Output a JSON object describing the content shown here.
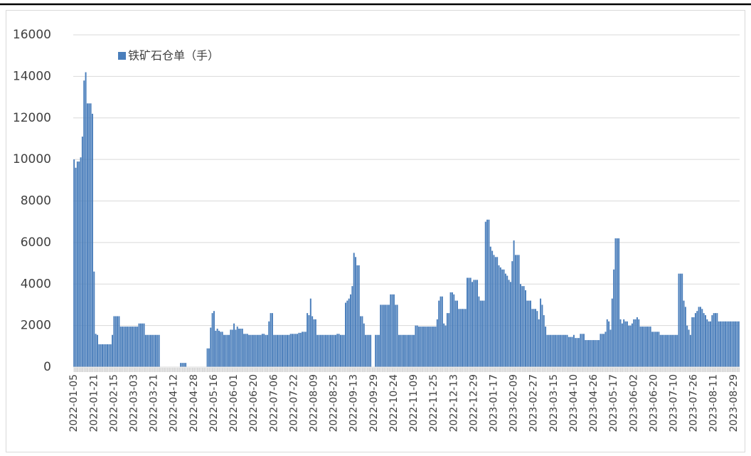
{
  "chart_data": {
    "type": "bar",
    "series": [
      {
        "name": "铁矿石仓单（手）",
        "color": "#4a7ebb",
        "values": [
          10000,
          9600,
          9900,
          9900,
          10100,
          11100,
          13800,
          14200,
          12700,
          12700,
          12700,
          12200,
          4600,
          1600,
          1550,
          1100,
          1100,
          1100,
          1100,
          1100,
          1100,
          1100,
          1100,
          1550,
          2450,
          2450,
          2450,
          2450,
          1950,
          1950,
          1950,
          1950,
          1950,
          1950,
          1950,
          1950,
          1950,
          1950,
          1950,
          2100,
          2100,
          2100,
          2100,
          1550,
          1550,
          1550,
          1550,
          1550,
          1550,
          1550,
          1550,
          1550,
          0,
          0,
          0,
          0,
          0,
          0,
          0,
          0,
          0,
          0,
          0,
          0,
          200,
          200,
          200,
          200,
          0,
          0,
          0,
          0,
          0,
          0,
          0,
          0,
          0,
          0,
          0,
          0,
          900,
          900,
          1900,
          2600,
          2700,
          1750,
          1850,
          1750,
          1700,
          1700,
          1550,
          1550,
          1550,
          1550,
          1800,
          1800,
          2100,
          1800,
          1950,
          1850,
          1850,
          1850,
          1600,
          1600,
          1600,
          1550,
          1550,
          1550,
          1550,
          1550,
          1550,
          1550,
          1550,
          1600,
          1600,
          1550,
          1550,
          2200,
          2600,
          2600,
          1550,
          1550,
          1550,
          1550,
          1550,
          1550,
          1550,
          1550,
          1550,
          1550,
          1600,
          1600,
          1600,
          1600,
          1600,
          1650,
          1650,
          1700,
          1700,
          1700,
          2600,
          2500,
          3300,
          2450,
          2300,
          2300,
          1550,
          1550,
          1550,
          1550,
          1550,
          1550,
          1550,
          1550,
          1550,
          1550,
          1550,
          1550,
          1600,
          1600,
          1550,
          1550,
          1550,
          3100,
          3200,
          3300,
          3500,
          3900,
          5500,
          5300,
          4900,
          4900,
          2450,
          2450,
          2100,
          1550,
          1550,
          1550,
          1550,
          0,
          0,
          1550,
          1550,
          1550,
          3000,
          3000,
          3000,
          3000,
          3000,
          3000,
          3500,
          3500,
          3500,
          3000,
          3000,
          1550,
          1550,
          1550,
          1550,
          1550,
          1550,
          1550,
          1550,
          1550,
          1550,
          2000,
          2000,
          1950,
          1950,
          1950,
          1950,
          1950,
          1950,
          1950,
          1950,
          1950,
          1950,
          1950,
          2300,
          3200,
          3400,
          3400,
          2100,
          2000,
          2600,
          2600,
          3600,
          3600,
          3500,
          3200,
          3200,
          2800,
          2800,
          2800,
          2800,
          2800,
          4300,
          4300,
          4300,
          4100,
          4200,
          4200,
          4200,
          3400,
          3200,
          3200,
          3200,
          7000,
          7100,
          7100,
          5800,
          5600,
          5400,
          5300,
          5300,
          4900,
          4800,
          4700,
          4700,
          4500,
          4400,
          4200,
          4100,
          5100,
          6100,
          5400,
          5400,
          5400,
          4000,
          3900,
          3900,
          3700,
          3200,
          3200,
          3200,
          2800,
          2800,
          2800,
          2700,
          2300,
          3300,
          3000,
          2500,
          1950,
          1550,
          1550,
          1550,
          1550,
          1550,
          1550,
          1550,
          1550,
          1550,
          1550,
          1550,
          1550,
          1550,
          1450,
          1450,
          1450,
          1550,
          1400,
          1400,
          1400,
          1600,
          1600,
          1600,
          1300,
          1300,
          1300,
          1300,
          1300,
          1300,
          1300,
          1300,
          1300,
          1600,
          1600,
          1600,
          1700,
          2300,
          2200,
          1800,
          3300,
          4700,
          6200,
          6200,
          6200,
          2300,
          2100,
          2300,
          2200,
          2200,
          2000,
          2000,
          2100,
          2300,
          2300,
          2400,
          2300,
          1950,
          1950,
          1950,
          1950,
          1950,
          1950,
          1950,
          1700,
          1700,
          1700,
          1700,
          1700,
          1550,
          1550,
          1550,
          1550,
          1550,
          1550,
          1550,
          1550,
          1550,
          1550,
          1550,
          4500,
          4500,
          4500,
          3200,
          2900,
          2000,
          1800,
          1550,
          2400,
          2400,
          2600,
          2700,
          2900,
          2900,
          2800,
          2600,
          2500,
          2300,
          2200,
          2200,
          2500,
          2600,
          2600,
          2600,
          2200,
          2200,
          2200,
          2200,
          2200,
          2200,
          2200,
          2200,
          2200,
          2200,
          2200,
          2200,
          2200
        ]
      }
    ],
    "categories": [
      "2022-01-05",
      null,
      null,
      null,
      null,
      null,
      null,
      null,
      null,
      null,
      null,
      null,
      "2022-01-21",
      null,
      null,
      null,
      null,
      null,
      null,
      null,
      null,
      null,
      null,
      null,
      "2022-02-15",
      null,
      null,
      null,
      null,
      null,
      null,
      null,
      null,
      null,
      null,
      null,
      "2022-03-03",
      null,
      null,
      null,
      null,
      null,
      null,
      null,
      null,
      null,
      null,
      null,
      "2022-03-21",
      null,
      null,
      null,
      null,
      null,
      null,
      null,
      null,
      null,
      null,
      null,
      "2022-04-12",
      null,
      null,
      null,
      null,
      null,
      null,
      null,
      null,
      null,
      null,
      null,
      "2022-04-28",
      null,
      null,
      null,
      null,
      null,
      null,
      null,
      null,
      null,
      null,
      null,
      "2022-05-16",
      null,
      null,
      null,
      null,
      null,
      null,
      null,
      null,
      null,
      null,
      null,
      "2022-06-01",
      null,
      null,
      null,
      null,
      null,
      null,
      null,
      null,
      null,
      null,
      null,
      "2022-06-20",
      null,
      null,
      null,
      null,
      null,
      null,
      null,
      null,
      null,
      null,
      null,
      "2022-07-06",
      null,
      null,
      null,
      null,
      null,
      null,
      null,
      null,
      null,
      null,
      null,
      "2022-07-22",
      null,
      null,
      null,
      null,
      null,
      null,
      null,
      null,
      null,
      null,
      null,
      "2022-08-09",
      null,
      null,
      null,
      null,
      null,
      null,
      null,
      null,
      null,
      null,
      null,
      "2022-08-25",
      null,
      null,
      null,
      null,
      null,
      null,
      null,
      null,
      null,
      null,
      null,
      "2022-09-13",
      null,
      null,
      null,
      null,
      null,
      null,
      null,
      null,
      null,
      null,
      null,
      "2022-09-29",
      null,
      null,
      null,
      null,
      null,
      null,
      null,
      null,
      null,
      null,
      null,
      "2022-10-24",
      null,
      null,
      null,
      null,
      null,
      null,
      null,
      null,
      null,
      null,
      null,
      "2022-11-09",
      null,
      null,
      null,
      null,
      null,
      null,
      null,
      null,
      null,
      null,
      null,
      "2022-11-25",
      null,
      null,
      null,
      null,
      null,
      null,
      null,
      null,
      null,
      null,
      null,
      "2022-12-13",
      null,
      null,
      null,
      null,
      null,
      null,
      null,
      null,
      null,
      null,
      null,
      "2022-12-29",
      null,
      null,
      null,
      null,
      null,
      null,
      null,
      null,
      null,
      null,
      null,
      "2023-01-17",
      null,
      null,
      null,
      null,
      null,
      null,
      null,
      null,
      null,
      null,
      null,
      "2023-02-09",
      null,
      null,
      null,
      null,
      null,
      null,
      null,
      null,
      null,
      null,
      null,
      "2023-02-27",
      null,
      null,
      null,
      null,
      null,
      null,
      null,
      null,
      null,
      null,
      null,
      "2023-03-15",
      null,
      null,
      null,
      null,
      null,
      null,
      null,
      null,
      null,
      null,
      null,
      "2023-04-10",
      null,
      null,
      null,
      null,
      null,
      null,
      null,
      null,
      null,
      null,
      null,
      "2023-04-26",
      null,
      null,
      null,
      null,
      null,
      null,
      null,
      null,
      null,
      null,
      null,
      "2023-05-17",
      null,
      null,
      null,
      null,
      null,
      null,
      null,
      null,
      null,
      null,
      null,
      "2023-06-02",
      null,
      null,
      null,
      null,
      null,
      null,
      null,
      null,
      null,
      null,
      null,
      "2023-06-20",
      null,
      null,
      null,
      null,
      null,
      null,
      null,
      null,
      null,
      null,
      null,
      "2023-07-10",
      null,
      null,
      null,
      null,
      null,
      null,
      null,
      null,
      null,
      null,
      null,
      "2023-07-26",
      null,
      null,
      null,
      null,
      null,
      null,
      null,
      null,
      null,
      null,
      null,
      "2023-08-11",
      null,
      null,
      null,
      null,
      null,
      null,
      null,
      null,
      null,
      null,
      null,
      "2023-08-29",
      null,
      null,
      null
    ],
    "ylim": [
      0,
      16000
    ],
    "yticks": [
      0,
      2000,
      4000,
      6000,
      8000,
      10000,
      12000,
      14000,
      16000
    ],
    "grid": true,
    "legend": "top-left"
  }
}
